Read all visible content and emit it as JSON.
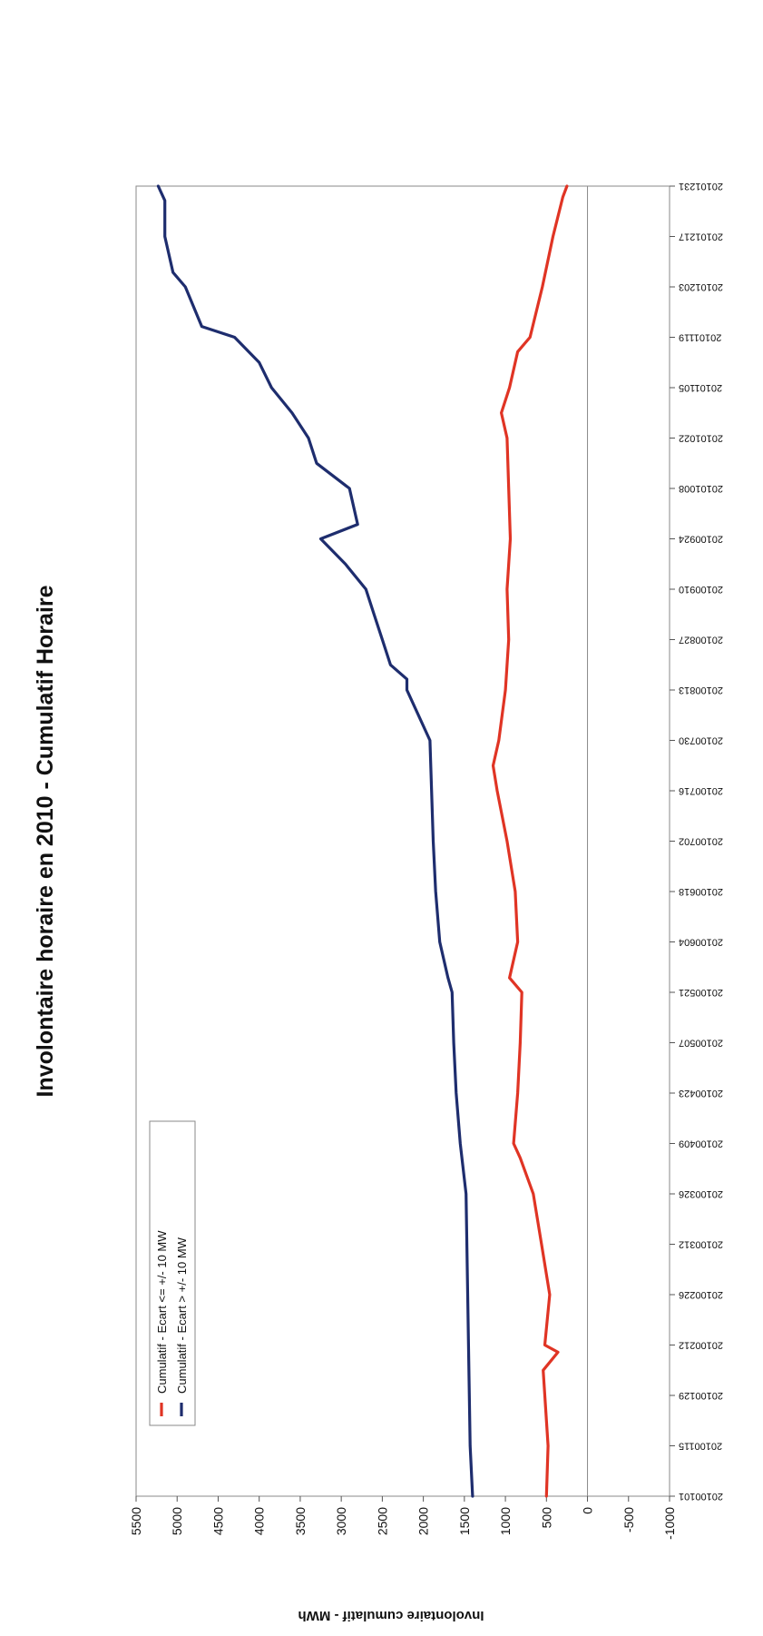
{
  "chart_data": {
    "type": "line",
    "title": "Involontaire horaire en 2010 - Cumulatif Horaire",
    "ylabel": "Involontaire cumulatif - MWh",
    "xlabel": "",
    "ylim": [
      -1000,
      5500
    ],
    "yticks": [
      "5500",
      "5000",
      "4500",
      "4000",
      "3500",
      "3000",
      "2500",
      "2000",
      "1500",
      "1000",
      "500",
      "0",
      "-500",
      "-1000"
    ],
    "x_tick_labels": [
      "20100101",
      "20100115",
      "20100129",
      "20100212",
      "20100226",
      "20100312",
      "20100326",
      "20100409",
      "20100423",
      "20100507",
      "20100521",
      "20100604",
      "20100618",
      "20100702",
      "20100716",
      "20100730",
      "20100813",
      "20100827",
      "20100910",
      "20100924",
      "20101008",
      "20101022",
      "20101105",
      "20101119",
      "20101203",
      "20101217",
      "20101231"
    ],
    "grid": false,
    "legend_position": "top-left",
    "series": [
      {
        "name": "Cumulatif - Ecart <= +/- 10 MW",
        "color": "#e03424",
        "points": [
          [
            "20100101",
            500
          ],
          [
            "20100115",
            480
          ],
          [
            "20100129",
            520
          ],
          [
            "20100205",
            540
          ],
          [
            "20100210",
            360
          ],
          [
            "20100212",
            520
          ],
          [
            "20100226",
            460
          ],
          [
            "20100312",
            560
          ],
          [
            "20100326",
            660
          ],
          [
            "20100405",
            820
          ],
          [
            "20100409",
            900
          ],
          [
            "20100423",
            850
          ],
          [
            "20100507",
            820
          ],
          [
            "20100521",
            800
          ],
          [
            "20100525",
            950
          ],
          [
            "20100604",
            850
          ],
          [
            "20100618",
            880
          ],
          [
            "20100702",
            980
          ],
          [
            "20100716",
            1100
          ],
          [
            "20100723",
            1150
          ],
          [
            "20100730",
            1080
          ],
          [
            "20100813",
            1000
          ],
          [
            "20100827",
            960
          ],
          [
            "20100910",
            980
          ],
          [
            "20100924",
            940
          ],
          [
            "20101008",
            960
          ],
          [
            "20101022",
            980
          ],
          [
            "20101029",
            1050
          ],
          [
            "20101105",
            950
          ],
          [
            "20101115",
            850
          ],
          [
            "20101119",
            700
          ],
          [
            "20101203",
            550
          ],
          [
            "20101217",
            420
          ],
          [
            "20101228",
            300
          ],
          [
            "20101231",
            250
          ]
        ]
      },
      {
        "name": "Cumulatif - Ecart > +/- 10 MW",
        "color": "#1e2d6e",
        "points": [
          [
            "20100101",
            1400
          ],
          [
            "20100115",
            1430
          ],
          [
            "20100212",
            1450
          ],
          [
            "20100326",
            1480
          ],
          [
            "20100409",
            1550
          ],
          [
            "20100423",
            1600
          ],
          [
            "20100507",
            1630
          ],
          [
            "20100521",
            1650
          ],
          [
            "20100525",
            1700
          ],
          [
            "20100604",
            1800
          ],
          [
            "20100618",
            1850
          ],
          [
            "20100702",
            1880
          ],
          [
            "20100716",
            1900
          ],
          [
            "20100730",
            1920
          ],
          [
            "20100813",
            2200
          ],
          [
            "20100816",
            2200
          ],
          [
            "20100820",
            2400
          ],
          [
            "20100827",
            2500
          ],
          [
            "20100903",
            2600
          ],
          [
            "20100910",
            2700
          ],
          [
            "20100917",
            2950
          ],
          [
            "20100924",
            3250
          ],
          [
            "20100928",
            2800
          ],
          [
            "20101008",
            2900
          ],
          [
            "20101015",
            3300
          ],
          [
            "20101022",
            3400
          ],
          [
            "20101029",
            3600
          ],
          [
            "20101105",
            3850
          ],
          [
            "20101112",
            4000
          ],
          [
            "20101119",
            4300
          ],
          [
            "20101122",
            4700
          ],
          [
            "20101203",
            4900
          ],
          [
            "20101207",
            5050
          ],
          [
            "20101217",
            5150
          ],
          [
            "20101227",
            5150
          ],
          [
            "20101231",
            5230
          ]
        ]
      }
    ]
  }
}
